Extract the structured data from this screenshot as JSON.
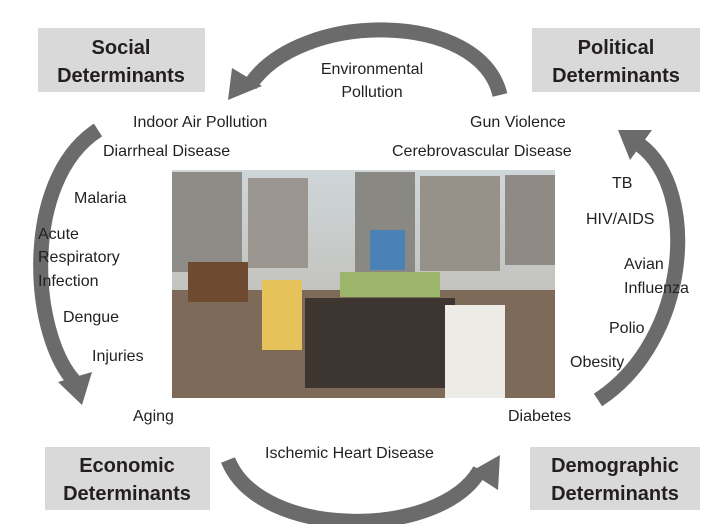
{
  "determinants": [
    {
      "lines": [
        "Social",
        "Determinants"
      ]
    },
    {
      "lines": [
        "Political",
        "Determinants"
      ]
    },
    {
      "lines": [
        "Economic",
        "Determinants"
      ]
    },
    {
      "lines": [
        "Demographic",
        "Determinants"
      ]
    }
  ],
  "top_label": {
    "lines": [
      "Environmental",
      "Pollution"
    ]
  },
  "left_items": [
    {
      "lines": [
        "Indoor Air Pollution"
      ]
    },
    {
      "lines": [
        "Diarrheal Disease"
      ]
    },
    {
      "lines": [
        "Malaria"
      ]
    },
    {
      "lines": [
        "Acute",
        "Respiratory",
        "Infection"
      ]
    },
    {
      "lines": [
        "Dengue"
      ]
    },
    {
      "lines": [
        "Injuries"
      ]
    },
    {
      "lines": [
        "Aging"
      ]
    }
  ],
  "right_items": [
    {
      "lines": [
        "Gun Violence"
      ]
    },
    {
      "lines": [
        "Cerebrovascular Disease"
      ]
    },
    {
      "lines": [
        "TB"
      ]
    },
    {
      "lines": [
        "HIV/AIDS"
      ]
    },
    {
      "lines": [
        "Avian",
        "Influenza"
      ]
    },
    {
      "lines": [
        "Polio"
      ]
    },
    {
      "lines": [
        "Obesity"
      ]
    },
    {
      "lines": [
        "Diabetes"
      ]
    }
  ],
  "bottom_label": {
    "lines": [
      "Ischemic Heart Disease"
    ]
  }
}
